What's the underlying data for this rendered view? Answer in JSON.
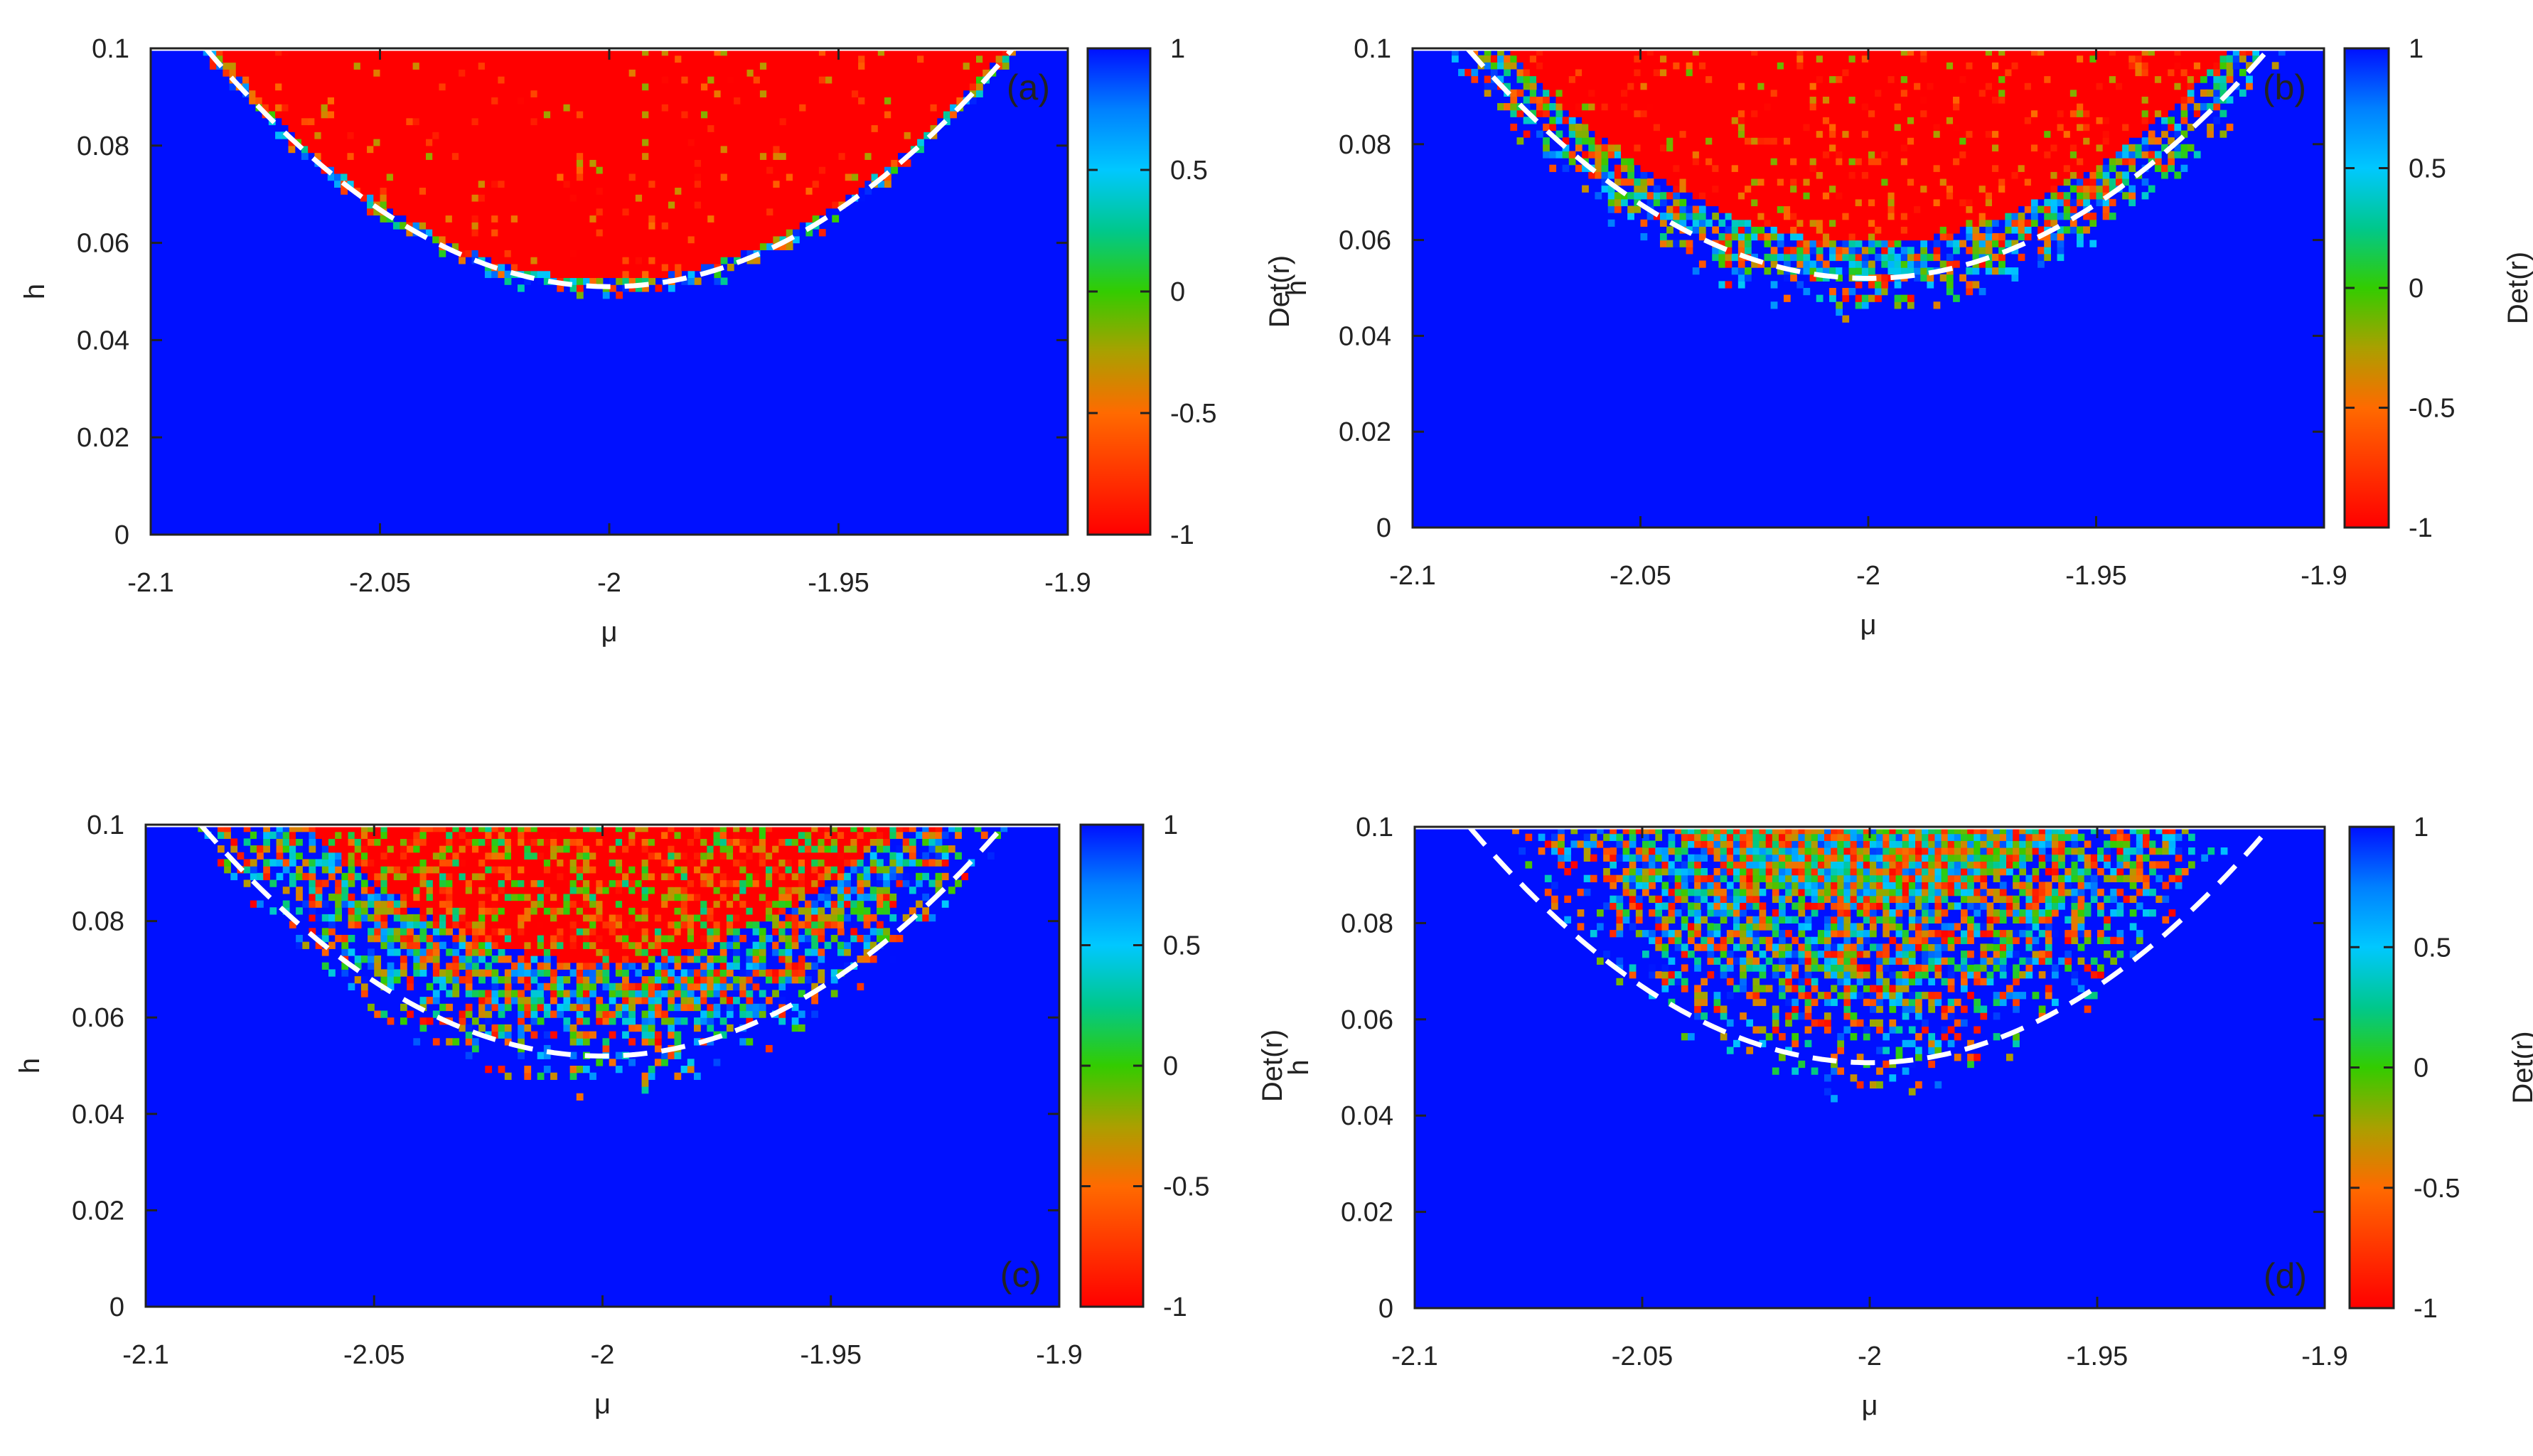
{
  "chart_data": [
    {
      "type": "heatmap",
      "panel_label": "(a)",
      "xlabel": "μ",
      "ylabel": "h",
      "colorbar_label": "Det(r)",
      "xlim": [
        -2.1,
        -1.9
      ],
      "ylim": [
        0,
        0.1
      ],
      "x_ticks": [
        "-2.1",
        "-2.05",
        "-2",
        "-1.95",
        "-1.9"
      ],
      "y_ticks": [
        "0",
        "0.02",
        "0.04",
        "0.06",
        "0.08",
        "0.1"
      ],
      "colorbar_ticks": [
        "1",
        "0.5",
        "0",
        "-0.5",
        "-1"
      ],
      "boundary": {
        "style": "dashed white",
        "shape": "parabola",
        "center_mu": -2.0,
        "min_h": 0.051,
        "edge_mu": [
          -2.088,
          -1.912
        ],
        "edge_h": 0.1
      },
      "ordered_region": {
        "value": -1,
        "color": "red",
        "boundary_min_h": 0.051,
        "boundary_edge_mu": [
          -2.088,
          -1.912
        ],
        "noise_level": 0.06,
        "speckle_spread": 0.0
      },
      "background_value": 1
    },
    {
      "type": "heatmap",
      "panel_label": "(b)",
      "xlabel": "μ",
      "ylabel": "h",
      "colorbar_label": "Det(r)",
      "xlim": [
        -2.1,
        -1.9
      ],
      "ylim": [
        0,
        0.1
      ],
      "x_ticks": [
        "-2.1",
        "-2.05",
        "-2",
        "-1.95",
        "-1.9"
      ],
      "y_ticks": [
        "0",
        "0.02",
        "0.04",
        "0.06",
        "0.08",
        "0.1"
      ],
      "colorbar_ticks": [
        "1",
        "0.5",
        "0",
        "-0.5",
        "-1"
      ],
      "boundary": {
        "style": "dashed white",
        "shape": "parabola",
        "center_mu": -2.0,
        "min_h": 0.052,
        "edge_mu": [
          -2.088,
          -1.912
        ],
        "edge_h": 0.1
      },
      "ordered_region": {
        "value": -1,
        "color": "red",
        "boundary_min_h": 0.054,
        "boundary_edge_mu": [
          -2.085,
          -1.915
        ],
        "noise_level": 0.15,
        "speckle_spread": 0.004
      },
      "background_value": 1
    },
    {
      "type": "heatmap",
      "panel_label": "(c)",
      "xlabel": "μ",
      "ylabel": "h",
      "colorbar_label": "Det(r)",
      "xlim": [
        -2.1,
        -1.9
      ],
      "ylim": [
        0,
        0.1
      ],
      "x_ticks": [
        "-2.1",
        "-2.05",
        "-2",
        "-1.95",
        "-1.9"
      ],
      "y_ticks": [
        "0",
        "0.02",
        "0.04",
        "0.06",
        "0.08",
        "0.1"
      ],
      "colorbar_ticks": [
        "1",
        "0.5",
        "0",
        "-0.5",
        "-1"
      ],
      "boundary": {
        "style": "dashed white",
        "shape": "parabola",
        "center_mu": -2.0,
        "min_h": 0.052,
        "edge_mu": [
          -2.088,
          -1.912
        ],
        "edge_h": 0.1
      },
      "ordered_region": {
        "value": -1,
        "color": "red",
        "boundary_min_h": 0.062,
        "boundary_edge_mu": [
          -2.075,
          -1.925
        ],
        "noise_level": 0.45,
        "speckle_spread": 0.008
      },
      "background_value": 1
    },
    {
      "type": "heatmap",
      "panel_label": "(d)",
      "xlabel": "μ",
      "ylabel": "h",
      "colorbar_label": "Det(r)",
      "xlim": [
        -2.1,
        -1.9
      ],
      "ylim": [
        0,
        0.1
      ],
      "x_ticks": [
        "-2.1",
        "-2.05",
        "-2",
        "-1.95",
        "-1.9"
      ],
      "y_ticks": [
        "0",
        "0.02",
        "0.04",
        "0.06",
        "0.08",
        "0.1"
      ],
      "colorbar_ticks": [
        "1",
        "0.5",
        "0",
        "-0.5",
        "-1"
      ],
      "boundary": {
        "style": "dashed white",
        "shape": "parabola",
        "center_mu": -2.0,
        "min_h": 0.051,
        "edge_mu": [
          -2.088,
          -1.912
        ],
        "edge_h": 0.1
      },
      "ordered_region": {
        "value": -1,
        "color": "red",
        "boundary_min_h": 0.07,
        "boundary_edge_mu": [
          -2.06,
          -1.94
        ],
        "noise_level": 1.0,
        "speckle_spread": 0.012
      },
      "background_value": 1
    }
  ]
}
